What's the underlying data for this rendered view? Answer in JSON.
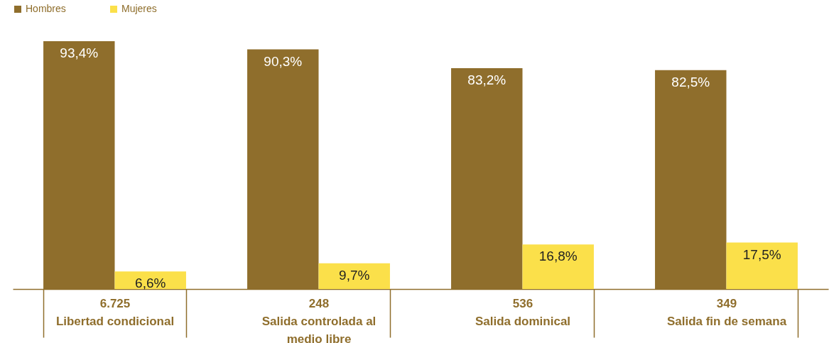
{
  "chart_data": {
    "type": "bar",
    "categories": [
      "Libertad condicional",
      "Salida controlada al medio libre",
      "Salida dominical",
      "Salida fin de semana"
    ],
    "annotations": [
      "6.725",
      "248",
      "536",
      "349"
    ],
    "series": [
      {
        "name": "Hombres",
        "color": "#8f6e2c",
        "values": [
          93.4,
          90.3,
          83.2,
          82.5
        ],
        "value_labels": [
          "93,4%",
          "90,3%",
          "83,2%",
          "82,5%"
        ]
      },
      {
        "name": "Mujeres",
        "color": "#fbe04a",
        "values": [
          6.6,
          9.7,
          16.8,
          17.5
        ],
        "value_labels": [
          "6,6%",
          "9,7%",
          "16,8%",
          "17,5%"
        ]
      }
    ],
    "legend": "top left",
    "grid": false
  }
}
